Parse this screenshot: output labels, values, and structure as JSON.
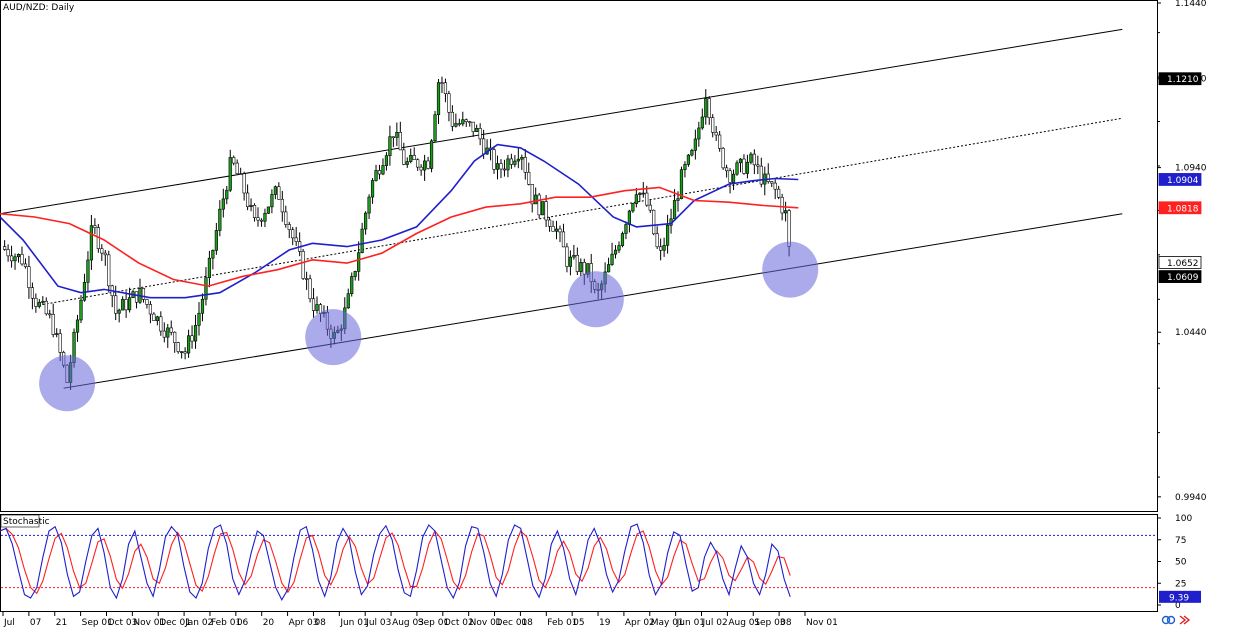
{
  "chart_data": [
    {
      "type": "candlestick",
      "title": "AUD/NZD: Daily",
      "timeframe": "Daily",
      "ylim": [
        0.99,
        1.144
      ],
      "y_ticks": [
        "1.1440",
        "1.1210",
        "1.0940",
        "1.0440",
        "0.9940"
      ],
      "x_tick_labels": [
        "Jul",
        "07",
        "21",
        "Sep 01",
        "Oct 03",
        "Nov 01",
        "Dec 01",
        "Jan 02",
        "Feb 01",
        "06",
        "20",
        "Apr 03",
        "08",
        "Jun 01",
        "Jul 03",
        "Aug 03",
        "Sep 01",
        "Oct 02",
        "Nov 01",
        "Dec 01",
        "08",
        "Feb 01",
        "05",
        "19",
        "Apr 02",
        "May 01",
        "Jun 01",
        "Jul 02",
        "Aug 01",
        "Sep 03",
        "08",
        "Nov 01"
      ],
      "price_badges": [
        {
          "label": "1.1210",
          "value": 1.121,
          "color": "#000000"
        },
        {
          "label": "1.0904",
          "value": 1.0904,
          "color": "#1f1fcc"
        },
        {
          "label": "1.0818",
          "value": 1.0818,
          "color": "#ff2020"
        },
        {
          "label": "1.0652",
          "value": 1.0652,
          "color": "#ffffff"
        },
        {
          "label": "1.0609",
          "value": 1.0609,
          "color": "#000000"
        }
      ],
      "series": [
        {
          "name": "Moving average (blue)",
          "color": "#1f1fcc",
          "points": [
            [
              0,
              1.079
            ],
            [
              0.02,
              1.072
            ],
            [
              0.05,
              1.058
            ],
            [
              0.07,
              1.056
            ],
            [
              0.09,
              1.057
            ],
            [
              0.13,
              1.0545
            ],
            [
              0.16,
              1.0545
            ],
            [
              0.19,
              1.056
            ],
            [
              0.22,
              1.062
            ],
            [
              0.25,
              1.069
            ],
            [
              0.27,
              1.071
            ],
            [
              0.3,
              1.07
            ],
            [
              0.33,
              1.072
            ],
            [
              0.36,
              1.076
            ],
            [
              0.39,
              1.087
            ],
            [
              0.41,
              1.096
            ],
            [
              0.43,
              1.101
            ],
            [
              0.45,
              1.1
            ],
            [
              0.47,
              1.096
            ],
            [
              0.5,
              1.089
            ],
            [
              0.53,
              1.079
            ],
            [
              0.55,
              1.076
            ],
            [
              0.58,
              1.077
            ],
            [
              0.6,
              1.084
            ],
            [
              0.63,
              1.089
            ],
            [
              0.65,
              1.09
            ],
            [
              0.67,
              1.0907
            ],
            [
              0.69,
              1.0904
            ]
          ]
        },
        {
          "name": "Moving average (red)",
          "color": "#ff2020",
          "points": [
            [
              0,
              1.08
            ],
            [
              0.03,
              1.079
            ],
            [
              0.06,
              1.077
            ],
            [
              0.09,
              1.072
            ],
            [
              0.12,
              1.065
            ],
            [
              0.15,
              1.06
            ],
            [
              0.18,
              1.058
            ],
            [
              0.21,
              1.061
            ],
            [
              0.24,
              1.063
            ],
            [
              0.27,
              1.066
            ],
            [
              0.3,
              1.065
            ],
            [
              0.33,
              1.068
            ],
            [
              0.36,
              1.074
            ],
            [
              0.39,
              1.079
            ],
            [
              0.42,
              1.082
            ],
            [
              0.45,
              1.083
            ],
            [
              0.48,
              1.085
            ],
            [
              0.51,
              1.085
            ],
            [
              0.54,
              1.087
            ],
            [
              0.57,
              1.088
            ],
            [
              0.6,
              1.084
            ],
            [
              0.63,
              1.0835
            ],
            [
              0.66,
              1.0825
            ],
            [
              0.69,
              1.0818
            ]
          ]
        }
      ],
      "channel": {
        "upper": [
          [
            0,
            1.08
          ],
          [
            0.97,
            1.136
          ]
        ],
        "middle": [
          [
            0.03,
            1.052
          ],
          [
            0.97,
            1.109
          ]
        ],
        "lower": [
          [
            0.055,
            1.027
          ],
          [
            0.97,
            1.08
          ]
        ]
      },
      "highlighted_lows": [
        {
          "x": 0.058,
          "y": 1.0285
        },
        {
          "x": 0.288,
          "y": 1.0425
        },
        {
          "x": 0.515,
          "y": 1.054
        },
        {
          "x": 0.683,
          "y": 1.063
        }
      ],
      "price_path": [
        [
          0,
          1.07
        ],
        [
          0.02,
          1.066
        ],
        [
          0.03,
          1.054
        ],
        [
          0.045,
          1.047
        ],
        [
          0.058,
          1.029
        ],
        [
          0.07,
          1.054
        ],
        [
          0.08,
          1.076
        ],
        [
          0.09,
          1.068
        ],
        [
          0.1,
          1.05
        ],
        [
          0.12,
          1.056
        ],
        [
          0.14,
          1.046
        ],
        [
          0.16,
          1.038
        ],
        [
          0.17,
          1.047
        ],
        [
          0.18,
          1.062
        ],
        [
          0.19,
          1.08
        ],
        [
          0.2,
          1.096
        ],
        [
          0.21,
          1.088
        ],
        [
          0.22,
          1.077
        ],
        [
          0.24,
          1.087
        ],
        [
          0.26,
          1.065
        ],
        [
          0.27,
          1.053
        ],
        [
          0.29,
          1.042
        ],
        [
          0.3,
          1.052
        ],
        [
          0.31,
          1.069
        ],
        [
          0.32,
          1.088
        ],
        [
          0.34,
          1.105
        ],
        [
          0.35,
          1.095
        ],
        [
          0.37,
          1.096
        ],
        [
          0.38,
          1.123
        ],
        [
          0.39,
          1.108
        ],
        [
          0.41,
          1.106
        ],
        [
          0.43,
          1.093
        ],
        [
          0.45,
          1.1
        ],
        [
          0.46,
          1.085
        ],
        [
          0.48,
          1.076
        ],
        [
          0.49,
          1.066
        ],
        [
          0.51,
          1.062
        ],
        [
          0.515,
          1.054
        ],
        [
          0.53,
          1.067
        ],
        [
          0.55,
          1.088
        ],
        [
          0.56,
          1.082
        ],
        [
          0.57,
          1.066
        ],
        [
          0.59,
          1.092
        ],
        [
          0.6,
          1.099
        ],
        [
          0.61,
          1.117
        ],
        [
          0.62,
          1.1
        ],
        [
          0.63,
          1.092
        ],
        [
          0.65,
          1.096
        ],
        [
          0.66,
          1.09
        ],
        [
          0.67,
          1.087
        ],
        [
          0.68,
          1.079
        ],
        [
          0.683,
          1.064
        ]
      ]
    },
    {
      "type": "line",
      "title": "Stochastic",
      "ylim": [
        0,
        100
      ],
      "y_ticks": [
        "100",
        "75",
        "50",
        "25",
        "0"
      ],
      "levels": [
        {
          "value": 80,
          "color": "#1f1fcc"
        },
        {
          "value": 20,
          "color": "#ff2020"
        }
      ],
      "current_value_label": "9.39",
      "current_value": 9.39,
      "series": [
        {
          "name": "%K",
          "color": "#1f1fcc"
        },
        {
          "name": "%D",
          "color": "#ff2020"
        }
      ],
      "values": [
        85,
        88,
        70,
        40,
        12,
        8,
        20,
        55,
        85,
        90,
        72,
        35,
        10,
        15,
        50,
        80,
        88,
        60,
        20,
        8,
        30,
        70,
        85,
        55,
        25,
        10,
        40,
        78,
        90,
        82,
        45,
        15,
        8,
        25,
        65,
        88,
        92,
        70,
        30,
        12,
        28,
        60,
        85,
        80,
        50,
        20,
        6,
        18,
        55,
        86,
        90,
        64,
        28,
        10,
        32,
        72,
        88,
        76,
        38,
        12,
        22,
        58,
        82,
        91,
        75,
        40,
        14,
        10,
        40,
        78,
        92,
        85,
        52,
        20,
        8,
        26,
        68,
        90,
        88,
        60,
        25,
        10,
        35,
        75,
        92,
        88,
        55,
        22,
        9,
        30,
        70,
        85,
        65,
        30,
        12,
        40,
        75,
        88,
        70,
        35,
        15,
        28,
        62,
        90,
        93,
        72,
        34,
        12,
        24,
        60,
        84,
        80,
        46,
        16,
        20,
        55,
        72,
        60,
        30,
        12,
        42,
        68,
        55,
        25,
        12,
        35,
        70,
        62,
        30,
        9.39
      ]
    }
  ],
  "toolbar_icons": [
    "link-icon",
    "arrow-icon"
  ]
}
